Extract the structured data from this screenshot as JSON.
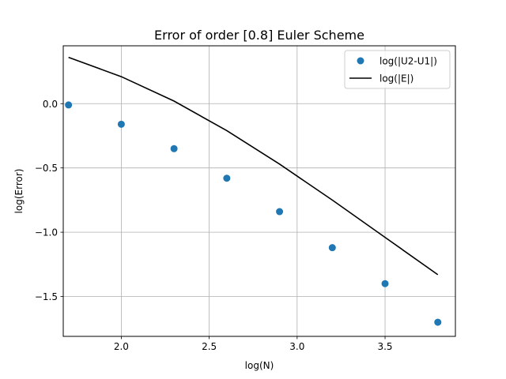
{
  "chart_data": {
    "type": "line",
    "title": "Error of order [0.8] Euler Scheme",
    "xlabel": "log(N)",
    "ylabel": "log(Error)",
    "xlim": [
      1.67,
      3.9
    ],
    "ylim": [
      -1.81,
      0.45
    ],
    "xticks": [
      {
        "value": 2.0,
        "label": "2.0"
      },
      {
        "value": 2.5,
        "label": "2.5"
      },
      {
        "value": 3.0,
        "label": "3.0"
      },
      {
        "value": 3.5,
        "label": "3.5"
      }
    ],
    "yticks": [
      {
        "value": 0.0,
        "label": "0.0"
      },
      {
        "value": -0.5,
        "label": "−0.5"
      },
      {
        "value": -1.0,
        "label": "−1.0"
      },
      {
        "value": -1.5,
        "label": "−1.5"
      }
    ],
    "grid": true,
    "legend_position": "upper right",
    "series": [
      {
        "name": "log(|U2-U1|)",
        "kind": "scatter",
        "color": "#1f77b4",
        "x": [
          1.7,
          2.0,
          2.3,
          2.6,
          2.9,
          3.2,
          3.5,
          3.8
        ],
        "y": [
          -0.01,
          -0.16,
          -0.35,
          -0.58,
          -0.84,
          -1.12,
          -1.4,
          -1.7
        ]
      },
      {
        "name": "log(|E|)",
        "kind": "line",
        "color": "#000000",
        "x": [
          1.7,
          2.0,
          2.3,
          2.6,
          2.9,
          3.2,
          3.5,
          3.8
        ],
        "y": [
          0.36,
          0.21,
          0.02,
          -0.21,
          -0.47,
          -0.75,
          -1.04,
          -1.33
        ]
      }
    ]
  }
}
